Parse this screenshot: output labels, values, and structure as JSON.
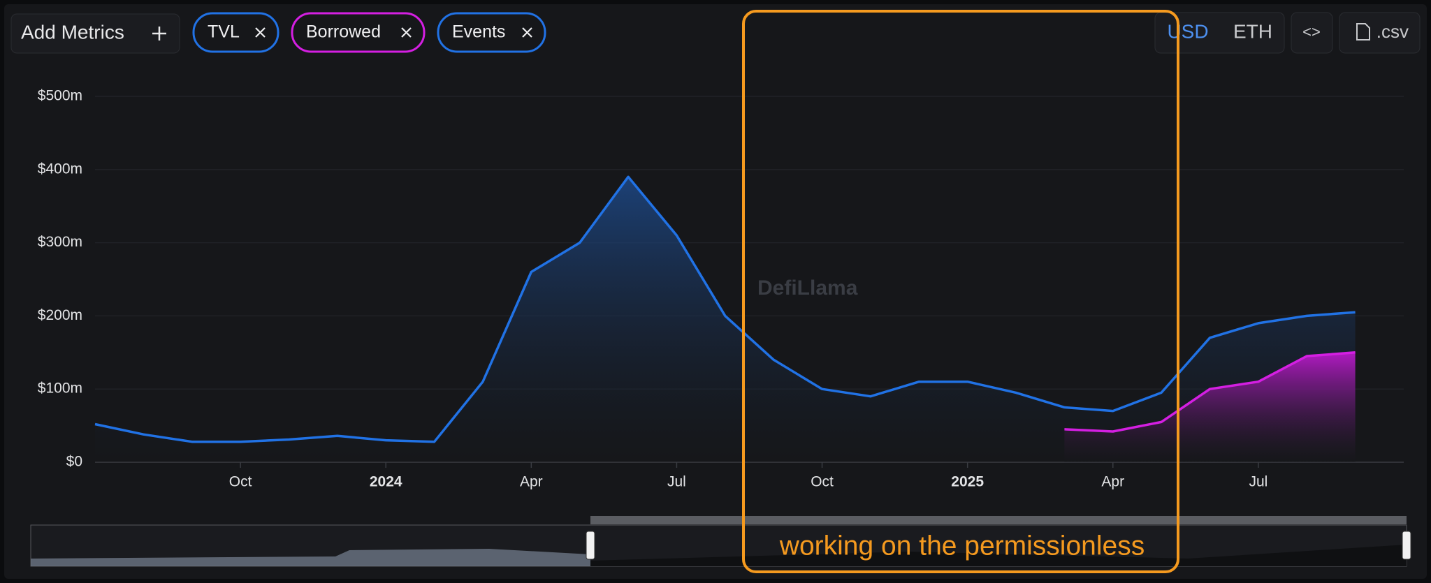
{
  "chart_data": {
    "type": "line",
    "x": [
      "2023-07",
      "2023-08",
      "2023-09",
      "2023-10",
      "2023-11",
      "2023-12",
      "2024-01",
      "2024-02",
      "2024-03",
      "2024-04",
      "2024-05",
      "2024-06",
      "2024-07",
      "2024-08",
      "2024-09",
      "2024-10",
      "2024-11",
      "2024-12",
      "2025-01",
      "2025-02",
      "2025-03",
      "2025-04",
      "2025-05",
      "2025-06",
      "2025-07",
      "2025-08",
      "2025-09"
    ],
    "series": [
      {
        "name": "TVL",
        "color": "#2172e5",
        "values": [
          52,
          38,
          28,
          28,
          31,
          36,
          30,
          28,
          110,
          260,
          300,
          390,
          310,
          200,
          140,
          100,
          90,
          110,
          110,
          95,
          75,
          70,
          95,
          170,
          190,
          200,
          205
        ]
      },
      {
        "name": "Borrowed",
        "color": "#d41fe2",
        "values": [
          null,
          null,
          null,
          null,
          null,
          null,
          null,
          null,
          null,
          null,
          null,
          null,
          null,
          null,
          null,
          null,
          null,
          null,
          null,
          null,
          45,
          42,
          55,
          100,
          110,
          145,
          150
        ]
      }
    ],
    "xlim": [
      "2023-07",
      "2025-10"
    ],
    "xticks": [
      {
        "value": "2023-10",
        "label": "Oct"
      },
      {
        "value": "2024-01",
        "label": "2024"
      },
      {
        "value": "2024-04",
        "label": "Apr"
      },
      {
        "value": "2024-07",
        "label": "Jul"
      },
      {
        "value": "2024-10",
        "label": "Oct"
      },
      {
        "value": "2025-01",
        "label": "2025"
      },
      {
        "value": "2025-04",
        "label": "Apr"
      },
      {
        "value": "2025-07",
        "label": "Jul"
      }
    ],
    "ylim": [
      0,
      500
    ],
    "yticks": [
      {
        "value": 0,
        "label": "$0"
      },
      {
        "value": 100,
        "label": "$100m"
      },
      {
        "value": 200,
        "label": "$200m"
      },
      {
        "value": 300,
        "label": "$300m"
      },
      {
        "value": 400,
        "label": "$400m"
      },
      {
        "value": 500,
        "label": "$500m"
      }
    ],
    "grid": true,
    "watermark": "DefiLlama",
    "annotation": "working on the permissionless"
  },
  "ui": {
    "add_metrics": "Add Metrics",
    "events_chip": "Events",
    "usd": "USD",
    "eth": "ETH",
    "embed": "<>",
    "csv": ".csv"
  }
}
